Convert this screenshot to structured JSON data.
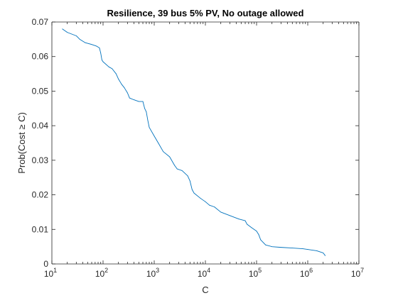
{
  "chart_data": {
    "type": "line",
    "title": "Resilience, 39 bus 5% PV, No outage allowed",
    "xlabel": "C",
    "ylabel": "Prob(Cost ≥ C)",
    "x_scale": "log",
    "xlim": [
      10,
      10000000
    ],
    "ylim": [
      0,
      0.07
    ],
    "grid": false,
    "legend": "none",
    "x_ticks": [
      {
        "value": 10,
        "base": "10",
        "exp": "1"
      },
      {
        "value": 100,
        "base": "10",
        "exp": "2"
      },
      {
        "value": 1000,
        "base": "10",
        "exp": "3"
      },
      {
        "value": 10000,
        "base": "10",
        "exp": "4"
      },
      {
        "value": 100000,
        "base": "10",
        "exp": "5"
      },
      {
        "value": 1000000,
        "base": "10",
        "exp": "6"
      },
      {
        "value": 10000000,
        "base": "10",
        "exp": "7"
      }
    ],
    "y_ticks": [
      {
        "value": 0,
        "label": "0"
      },
      {
        "value": 0.01,
        "label": "0.01"
      },
      {
        "value": 0.02,
        "label": "0.02"
      },
      {
        "value": 0.03,
        "label": "0.03"
      },
      {
        "value": 0.04,
        "label": "0.04"
      },
      {
        "value": 0.05,
        "label": "0.05"
      },
      {
        "value": 0.06,
        "label": "0.06"
      },
      {
        "value": 0.07,
        "label": "0.07"
      }
    ],
    "series": [
      {
        "color": "#0072bd",
        "x": [
          16,
          20,
          30,
          35,
          45,
          60,
          75,
          85,
          90,
          95,
          100,
          130,
          150,
          180,
          200,
          230,
          260,
          300,
          330,
          400,
          500,
          600,
          650,
          700,
          750,
          800,
          1000,
          1200,
          1500,
          2000,
          2500,
          2800,
          3500,
          4500,
          5000,
          5500,
          6000,
          8000,
          10000,
          12000,
          15000,
          20000,
          30000,
          45000,
          60000,
          65000,
          80000,
          100000,
          110000,
          120000,
          150000,
          200000,
          300000,
          500000,
          800000,
          1000000,
          1500000,
          2000000,
          2200000
        ],
        "y": [
          0.068,
          0.067,
          0.066,
          0.065,
          0.064,
          0.0635,
          0.063,
          0.0625,
          0.061,
          0.059,
          0.0585,
          0.057,
          0.0565,
          0.055,
          0.0535,
          0.052,
          0.051,
          0.0495,
          0.048,
          0.0475,
          0.047,
          0.047,
          0.045,
          0.044,
          0.0415,
          0.0395,
          0.037,
          0.035,
          0.0325,
          0.031,
          0.0285,
          0.0275,
          0.027,
          0.0255,
          0.024,
          0.0215,
          0.0205,
          0.019,
          0.018,
          0.017,
          0.0165,
          0.015,
          0.014,
          0.013,
          0.0125,
          0.0115,
          0.0105,
          0.0095,
          0.0085,
          0.007,
          0.0055,
          0.005,
          0.0048,
          0.0046,
          0.0044,
          0.0042,
          0.0038,
          0.0032,
          0.0024
        ]
      }
    ]
  }
}
